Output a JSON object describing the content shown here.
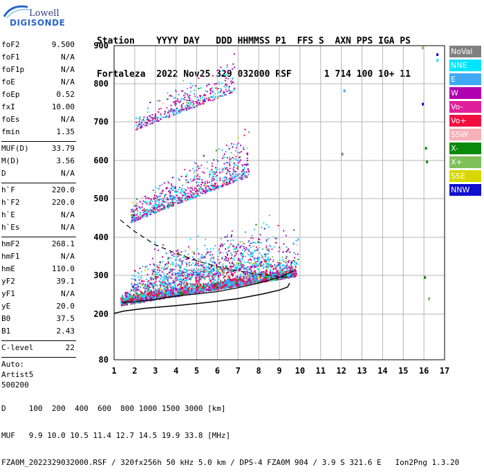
{
  "logo": {
    "line1": "Lowell",
    "line2": "DIGISONDE"
  },
  "header": {
    "labels": "Station    YYYY DAY   DDD HHMMSS P1  FFS S  AXN PPS IGA PS",
    "values": "Fortaleza  2022 Nov25 329 032000 RSF      1 714 100 10+ 11"
  },
  "params_group1": [
    {
      "name": "foF2",
      "value": "9.500"
    },
    {
      "name": "foF1",
      "value": "N/A"
    },
    {
      "name": "foF1p",
      "value": "N/A"
    },
    {
      "name": "foE",
      "value": "N/A"
    },
    {
      "name": "foEp",
      "value": "0.52"
    },
    {
      "name": "fxI",
      "value": "10.00"
    },
    {
      "name": "foEs",
      "value": "N/A"
    },
    {
      "name": "fmin",
      "value": "1.35"
    }
  ],
  "params_group2": [
    {
      "name": "MUF(D)",
      "value": "33.79"
    },
    {
      "name": "M(D)",
      "value": "3.56"
    },
    {
      "name": "D",
      "value": "N/A"
    }
  ],
  "params_group3": [
    {
      "name": "h`F",
      "value": "220.0"
    },
    {
      "name": "h`F2",
      "value": "220.0"
    },
    {
      "name": "h`E",
      "value": "N/A"
    },
    {
      "name": "h`Es",
      "value": "N/A"
    }
  ],
  "params_group4": [
    {
      "name": "hmF2",
      "value": "268.1"
    },
    {
      "name": "hmF1",
      "value": "N/A"
    },
    {
      "name": "hmE",
      "value": "110.0"
    },
    {
      "name": "yF2",
      "value": "39.1"
    },
    {
      "name": "yF1",
      "value": "N/A"
    },
    {
      "name": "yE",
      "value": "20.0"
    },
    {
      "name": "B0",
      "value": "37.5"
    },
    {
      "name": "B1",
      "value": "2.43"
    }
  ],
  "params_group5": [
    {
      "name": "C-level",
      "value": "22"
    }
  ],
  "auto": {
    "line1": "Auto:",
    "line2": "Artist5",
    "line3": "500200"
  },
  "legend": [
    {
      "label": "NoVal",
      "color": "#808080"
    },
    {
      "label": "NNE",
      "color": "#00e5ff"
    },
    {
      "label": "E",
      "color": "#3fa9f5"
    },
    {
      "label": "W",
      "color": "#b000b0"
    },
    {
      "label": "Vo-",
      "color": "#e0209a"
    },
    {
      "label": "Vo+",
      "color": "#f01040"
    },
    {
      "label": "SSW",
      "color": "#f7b0b8"
    },
    {
      "label": "X-",
      "color": "#0a8a0a"
    },
    {
      "label": "X+",
      "color": "#7fbf5a"
    },
    {
      "label": "SSE",
      "color": "#d8d800"
    },
    {
      "label": "NNW",
      "color": "#1010d0"
    }
  ],
  "chart_data": {
    "type": "scatter",
    "xlim": [
      1,
      17
    ],
    "ylim": [
      80,
      900
    ],
    "x_ticks": [
      "1",
      "2",
      "3",
      "4",
      "5",
      "6",
      "7",
      "8",
      "9",
      "10",
      "11",
      "12",
      "13",
      "14",
      "15",
      "16",
      "17"
    ],
    "y_ticks": [
      "900",
      "800",
      "700",
      "600",
      "500",
      "400",
      "300",
      "200",
      "80"
    ],
    "y_tick_values": [
      900,
      800,
      700,
      600,
      500,
      400,
      300,
      200,
      80
    ],
    "grid": true,
    "profile_solid": [
      [
        1.0,
        202
      ],
      [
        1.5,
        208
      ],
      [
        2.5,
        215
      ],
      [
        4,
        222
      ],
      [
        5.5,
        230
      ],
      [
        7,
        240
      ],
      [
        8.2,
        252
      ],
      [
        9.0,
        262
      ],
      [
        9.4,
        270
      ],
      [
        9.5,
        280
      ]
    ],
    "profile_dashed": [
      [
        1.3,
        445
      ],
      [
        2,
        415
      ],
      [
        3,
        380
      ],
      [
        4,
        358
      ],
      [
        5,
        338
      ],
      [
        6,
        323
      ],
      [
        7,
        312
      ],
      [
        8,
        303
      ],
      [
        9,
        297
      ],
      [
        9.5,
        294
      ]
    ],
    "trace_black": [
      [
        1.4,
        230
      ],
      [
        2,
        232
      ],
      [
        3,
        238
      ],
      [
        4,
        247
      ],
      [
        5,
        252
      ],
      [
        6,
        258
      ],
      [
        7,
        268
      ],
      [
        8,
        280
      ],
      [
        9,
        295
      ],
      [
        9.7,
        312
      ]
    ],
    "clusters": [
      {
        "x": [
          1.3,
          9.8
        ],
        "y_lo": [
          225,
          300
        ],
        "y_hi": [
          265,
          345
        ],
        "count": 1500
      },
      {
        "x": [
          1.8,
          8.5
        ],
        "y_lo": [
          260,
          330
        ],
        "y_hi": [
          320,
          470
        ],
        "count": 700
      },
      {
        "x": [
          2.8,
          9.9
        ],
        "y_lo": [
          290,
          330
        ],
        "y_hi": [
          400,
          455
        ],
        "count": 450
      },
      {
        "x": [
          1.8,
          7.5
        ],
        "y_lo": [
          440,
          560
        ],
        "y_hi": [
          500,
          700
        ],
        "count": 900
      },
      {
        "x": [
          2.0,
          6.8
        ],
        "y_lo": [
          680,
          780
        ],
        "y_hi": [
          730,
          900
        ],
        "count": 420
      }
    ],
    "stray_points": [
      {
        "x": 12.1,
        "y": 785,
        "color": "#3fa9f5"
      },
      {
        "x": 15.9,
        "y": 750,
        "color": "#1010d0"
      },
      {
        "x": 16.05,
        "y": 635,
        "color": "#0a8a0a"
      },
      {
        "x": 16.1,
        "y": 600,
        "color": "#0a8a0a"
      },
      {
        "x": 16.6,
        "y": 880,
        "color": "#1010d0"
      },
      {
        "x": 16.6,
        "y": 865,
        "color": "#00e5ff"
      },
      {
        "x": 16.0,
        "y": 298,
        "color": "#0a8a0a"
      },
      {
        "x": 16.2,
        "y": 243,
        "color": "#7fbf5a"
      },
      {
        "x": 15.9,
        "y": 898,
        "color": "#7fbf5a"
      },
      {
        "x": 12.0,
        "y": 620,
        "color": "#808080"
      }
    ]
  },
  "footer": {
    "line1": "D     100  200  400  600  800 1000 1500 3000 [km]",
    "line2": "MUF   9.9 10.0 10.5 11.4 12.7 14.5 19.9 33.8 [MHz]",
    "line3": "FZA0M_2022329032000.RSF / 320fx256h 50 kHz 5.0 km / DPS-4 FZA0M 904 / 3.9 S 321.6 E   Ion2Png 1.3.20"
  }
}
